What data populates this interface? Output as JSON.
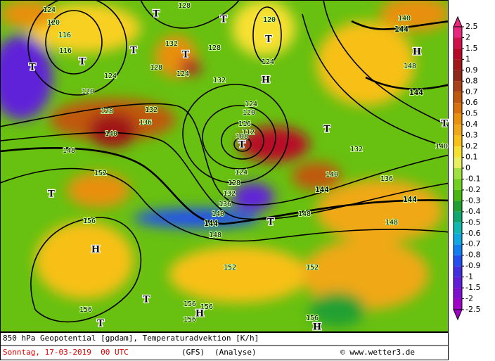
{
  "colorbar": {
    "labels": [
      2.5,
      2,
      1.5,
      1,
      0.9,
      0.8,
      0.7,
      0.6,
      0.5,
      0.4,
      0.3,
      0.2,
      0.1,
      0,
      -0.1,
      -0.2,
      -0.3,
      -0.4,
      -0.5,
      -0.6,
      -0.7,
      -0.8,
      -0.9,
      -1,
      -1.5,
      -2,
      -2.5
    ],
    "colors": [
      "#e8287e",
      "#d0104a",
      "#b80828",
      "#a01818",
      "#902818",
      "#a84018",
      "#c05810",
      "#d87010",
      "#e89010",
      "#f0a818",
      "#f8c018",
      "#f8e030",
      "#e8f060",
      "#a0e040",
      "#70d020",
      "#48b810",
      "#20a030",
      "#10a870",
      "#10b8b0",
      "#10a8e0",
      "#1080f0",
      "#2050f0",
      "#4030e0",
      "#6020d8",
      "#8010d0",
      "#a000c8"
    ]
  },
  "contour_labels": [
    124,
    120,
    116,
    116,
    120,
    124,
    128,
    132,
    136,
    140,
    148,
    152,
    156,
    156,
    128,
    132,
    128,
    124,
    132,
    128,
    120,
    124,
    124,
    120,
    116,
    112,
    108,
    124,
    128,
    132,
    136,
    140,
    144,
    148,
    152,
    152,
    156,
    156,
    156,
    156,
    140,
    144,
    148,
    136,
    144,
    148,
    132,
    140,
    140,
    144,
    148,
    144
  ],
  "pressure_centers": [
    "T",
    "T",
    "T",
    "T",
    "T",
    "T",
    "T",
    "H",
    "H",
    "T",
    "T",
    "T",
    "T",
    "H",
    "T",
    "T",
    "H",
    "T",
    "H"
  ],
  "footer": {
    "title": "850 hPa Geopotential [gpdam], Temperaturadvektion [K/h]",
    "date": "Sonntag, 17-03-2019  00 UTC",
    "model": "(GFS)",
    "run": "(Analyse)",
    "credit": "© www.wetter3.de"
  }
}
